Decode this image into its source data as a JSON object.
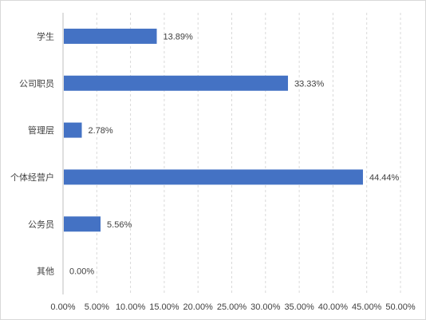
{
  "chart_data": {
    "type": "bar",
    "orientation": "horizontal",
    "categories": [
      "学生",
      "公司职员",
      "管理层",
      "个体经营户",
      "公务员",
      "其他"
    ],
    "values": [
      13.89,
      33.33,
      2.78,
      44.44,
      5.56,
      0.0
    ],
    "value_labels": [
      "13.89%",
      "33.33%",
      "2.78%",
      "44.44%",
      "5.56%",
      "0.00%"
    ],
    "xlim": [
      0,
      50
    ],
    "xticks": [
      0,
      5,
      10,
      15,
      20,
      25,
      30,
      35,
      40,
      45,
      50
    ],
    "xtick_labels": [
      "0.00%",
      "5.00%",
      "10.00%",
      "15.00%",
      "20.00%",
      "25.00%",
      "30.00%",
      "35.00%",
      "40.00%",
      "45.00%",
      "50.00%"
    ],
    "grid": "vertical dashed",
    "legend": "none",
    "colors": {
      "bar": "#4472C4",
      "grid": "#d9d9d9",
      "text": "#404040"
    }
  }
}
